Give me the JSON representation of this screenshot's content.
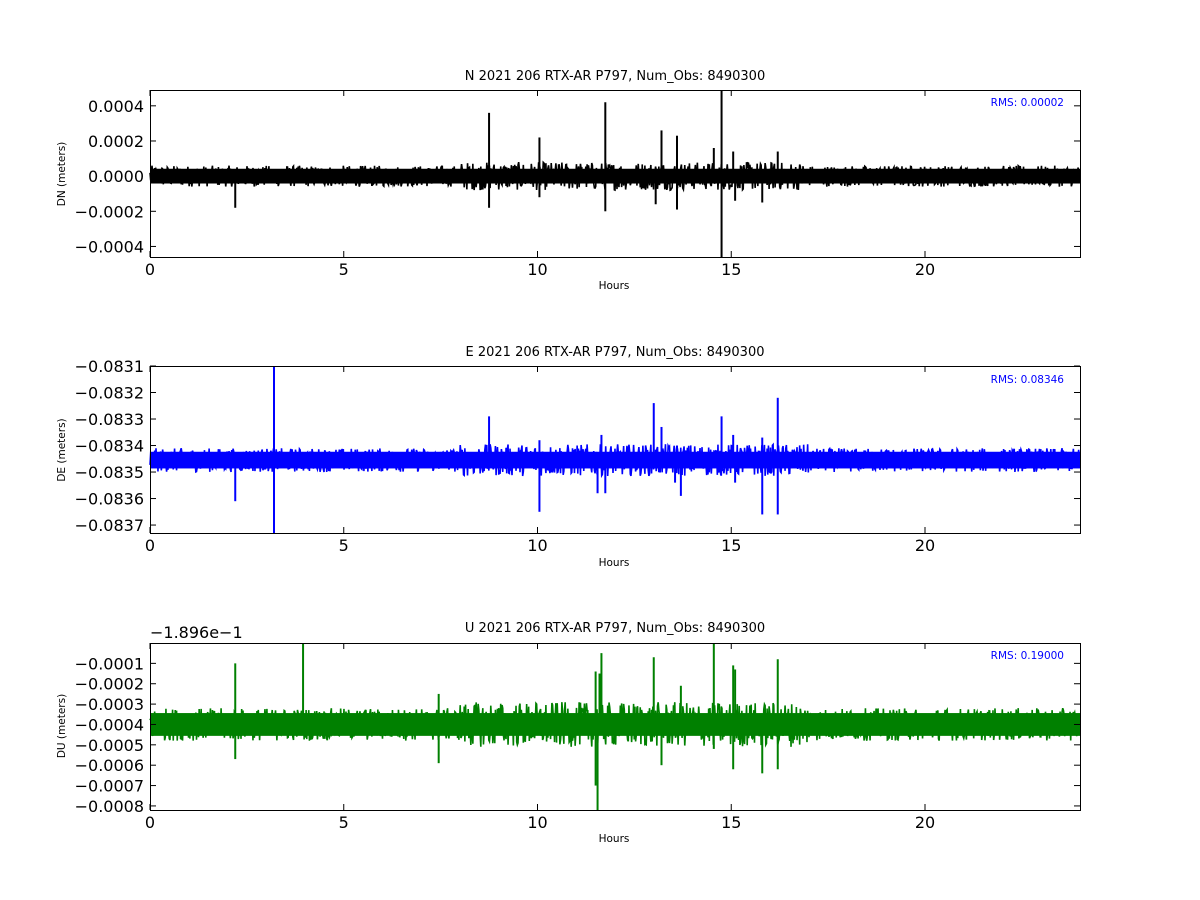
{
  "chart_data": [
    {
      "type": "line",
      "title": "N 2021 206 RTX-AR  P797, Num_Obs: 8490300",
      "xlabel": "Hours",
      "ylabel": "DN (meters)",
      "xlim": [
        0,
        24
      ],
      "ylim": [
        -0.00046,
        0.00049
      ],
      "xticks": [
        0,
        5,
        10,
        15,
        20
      ],
      "xtick_labels": [
        "0",
        "5",
        "10",
        "15",
        "20"
      ],
      "yticks": [
        0.0004,
        0.0002,
        0.0,
        -0.0002,
        -0.0004
      ],
      "ytick_labels": [
        "0.0004",
        "0.0002",
        "0.0000",
        "−0.0002",
        "−0.0004"
      ],
      "offset_label": "",
      "annotation": "RMS:  0.00002",
      "color": "#000000",
      "series": [
        {
          "band": {
            "center": 0.0,
            "half_width": 6e-05,
            "peak_half_width": 8e-05
          },
          "spikes": [
            [
              2.2,
              -0.00018
            ],
            [
              8.75,
              0.00036
            ],
            [
              8.75,
              -0.00018
            ],
            [
              10.05,
              0.00022
            ],
            [
              10.05,
              -0.00012
            ],
            [
              11.75,
              0.00042
            ],
            [
              11.75,
              -0.0002
            ],
            [
              13.05,
              -0.00016
            ],
            [
              13.2,
              0.00026
            ],
            [
              13.6,
              0.00023
            ],
            [
              13.6,
              -0.00019
            ],
            [
              14.55,
              0.00016
            ],
            [
              14.75,
              0.00049
            ],
            [
              14.75,
              -0.00046
            ],
            [
              15.05,
              0.00014
            ],
            [
              15.1,
              -0.00014
            ],
            [
              15.8,
              -0.00015
            ],
            [
              16.2,
              0.00014
            ]
          ]
        }
      ]
    },
    {
      "type": "line",
      "title": "E 2021 206 RTX-AR  P797, Num_Obs: 8490300",
      "xlabel": "Hours",
      "ylabel": "DE (meters)",
      "xlim": [
        0,
        24
      ],
      "ylim": [
        -0.08373,
        -0.0831
      ],
      "xticks": [
        0,
        5,
        10,
        15,
        20
      ],
      "xtick_labels": [
        "0",
        "5",
        "10",
        "15",
        "20"
      ],
      "yticks": [
        -0.0831,
        -0.0832,
        -0.0833,
        -0.0834,
        -0.0835,
        -0.0836,
        -0.0837
      ],
      "ytick_labels": [
        "−0.0831",
        "−0.0832",
        "−0.0833",
        "−0.0834",
        "−0.0835",
        "−0.0836",
        "−0.0837"
      ],
      "offset_label": "",
      "annotation": "RMS:  0.08346",
      "color": "#0000ff",
      "series": [
        {
          "band": {
            "center": -0.083455,
            "half_width": 4.5e-05,
            "peak_half_width": 6e-05
          },
          "spikes": [
            [
              2.2,
              -0.08361
            ],
            [
              3.2,
              -0.0831
            ],
            [
              3.2,
              -0.08373
            ],
            [
              8.75,
              -0.08329
            ],
            [
              10.05,
              -0.08338
            ],
            [
              10.05,
              -0.08365
            ],
            [
              11.55,
              -0.08358
            ],
            [
              11.65,
              -0.08336
            ],
            [
              11.75,
              -0.08358
            ],
            [
              13.0,
              -0.08324
            ],
            [
              13.2,
              -0.08333
            ],
            [
              13.55,
              -0.08354
            ],
            [
              13.6,
              -0.0834
            ],
            [
              13.7,
              -0.08359
            ],
            [
              14.75,
              -0.08329
            ],
            [
              15.05,
              -0.08336
            ],
            [
              15.1,
              -0.08354
            ],
            [
              15.8,
              -0.08337
            ],
            [
              15.8,
              -0.08366
            ],
            [
              16.2,
              -0.08322
            ],
            [
              16.2,
              -0.08366
            ]
          ]
        }
      ]
    },
    {
      "type": "line",
      "title": "U 2021 206 RTX-AR  P797, Num_Obs: 8490300",
      "xlabel": "Hours",
      "ylabel": "DU (meters)",
      "xlim": [
        0,
        24
      ],
      "ylim": [
        -0.00082,
        -0.0
      ],
      "xticks": [
        0,
        5,
        10,
        15,
        20
      ],
      "xtick_labels": [
        "0",
        "5",
        "10",
        "15",
        "20"
      ],
      "yticks": [
        -0.0001,
        -0.0002,
        -0.0003,
        -0.0004,
        -0.0005,
        -0.0006,
        -0.0007,
        -0.0008
      ],
      "ytick_labels": [
        "−0.0001",
        "−0.0002",
        "−0.0003",
        "−0.0004",
        "−0.0005",
        "−0.0006",
        "−0.0007",
        "−0.0008"
      ],
      "offset_label": "−1.896e−1",
      "annotation": "RMS:  0.19000",
      "color": "#008000",
      "series": [
        {
          "band": {
            "center": -0.0004,
            "half_width": 8e-05,
            "peak_half_width": 0.00011
          },
          "spikes": [
            [
              2.2,
              -0.0001
            ],
            [
              2.2,
              -0.00057
            ],
            [
              3.95,
              0.0
            ],
            [
              7.45,
              -0.00025
            ],
            [
              7.45,
              -0.00059
            ],
            [
              11.5,
              -0.00014
            ],
            [
              11.5,
              -0.0007
            ],
            [
              11.55,
              -0.00082
            ],
            [
              11.6,
              -0.00015
            ],
            [
              11.65,
              -5e-05
            ],
            [
              13.0,
              -7e-05
            ],
            [
              13.2,
              -0.0006
            ],
            [
              13.7,
              -0.00021
            ],
            [
              14.55,
              0.0
            ],
            [
              14.55,
              -0.00052
            ],
            [
              15.05,
              -0.00011
            ],
            [
              15.05,
              -0.00062
            ],
            [
              15.1,
              -0.00013
            ],
            [
              15.8,
              -0.00064
            ],
            [
              16.2,
              -8e-05
            ],
            [
              16.2,
              -0.00062
            ]
          ]
        }
      ]
    }
  ]
}
